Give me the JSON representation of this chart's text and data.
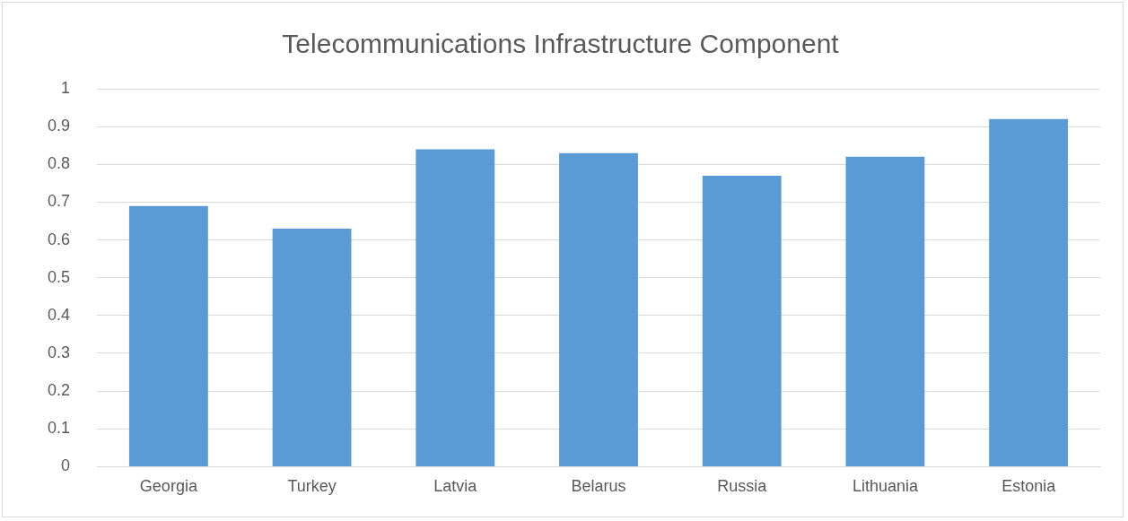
{
  "chart_data": {
    "type": "bar",
    "title": "Telecommunications Infrastructure Component",
    "categories": [
      "Georgia",
      "Turkey",
      "Latvia",
      "Belarus",
      "Russia",
      "Lithuania",
      "Estonia"
    ],
    "values": [
      0.69,
      0.63,
      0.84,
      0.83,
      0.77,
      0.82,
      0.92
    ],
    "color": "#5b9bd5",
    "ylim": [
      0,
      1
    ],
    "yticks": [
      0,
      0.1,
      0.2,
      0.3,
      0.4,
      0.5,
      0.6,
      0.7,
      0.8,
      0.9,
      1
    ],
    "grid": "y",
    "legend": false
  }
}
